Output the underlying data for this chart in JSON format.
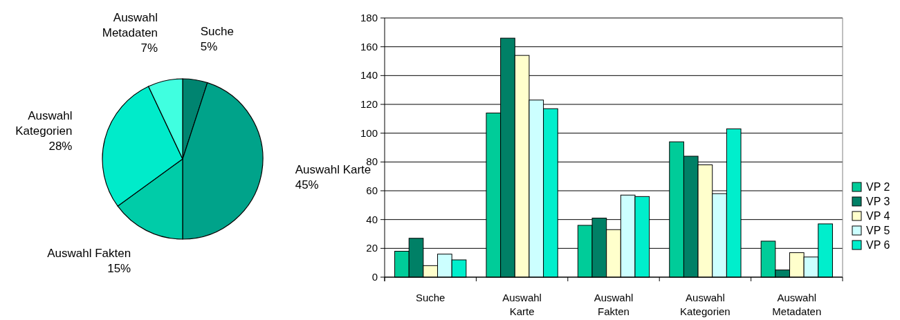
{
  "chart_data": [
    {
      "type": "pie",
      "categories": [
        "Suche",
        "Auswahl Karte",
        "Auswahl Fakten",
        "Auswahl Kategorien",
        "Auswahl Metadaten"
      ],
      "values": [
        5,
        45,
        15,
        28,
        7
      ],
      "colors": [
        "#008470",
        "#00a38a",
        "#00cca8",
        "#00ebca",
        "#40ffe0"
      ],
      "value_labels": [
        "5%",
        "45%",
        "15%",
        "28%",
        "7%"
      ]
    },
    {
      "type": "bar",
      "categories": [
        "Suche",
        "Auswahl Karte",
        "Auswahl Fakten",
        "Auswahl Kategorien",
        "Auswahl Metadaten"
      ],
      "series": [
        {
          "name": "VP 2",
          "color": "#00cc99",
          "values": [
            18,
            114,
            36,
            94,
            25
          ]
        },
        {
          "name": "VP 3",
          "color": "#008066",
          "values": [
            27,
            166,
            41,
            84,
            5
          ]
        },
        {
          "name": "VP 4",
          "color": "#ffffcc",
          "values": [
            8,
            154,
            33,
            78,
            17
          ]
        },
        {
          "name": "VP 5",
          "color": "#ccffff",
          "values": [
            16,
            123,
            57,
            58,
            14
          ]
        },
        {
          "name": "VP 6",
          "color": "#00eecc",
          "values": [
            12,
            117,
            56,
            103,
            37
          ]
        }
      ],
      "ylim": [
        0,
        180
      ],
      "yticks": [
        0,
        20,
        40,
        60,
        80,
        100,
        120,
        140,
        160,
        180
      ],
      "grid": "y",
      "legend": "right"
    }
  ]
}
